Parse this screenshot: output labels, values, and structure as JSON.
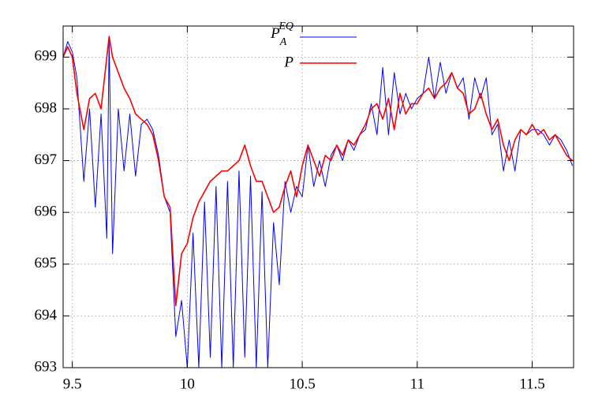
{
  "chart_data": {
    "type": "line",
    "x": [
      9.46,
      9.48,
      9.5,
      9.52,
      9.55,
      9.575,
      9.6,
      9.625,
      9.65,
      9.66,
      9.675,
      9.7,
      9.725,
      9.75,
      9.775,
      9.8,
      9.825,
      9.85,
      9.875,
      9.9,
      9.925,
      9.95,
      9.975,
      10,
      10.025,
      10.05,
      10.075,
      10.1,
      10.125,
      10.15,
      10.175,
      10.2,
      10.225,
      10.25,
      10.275,
      10.3,
      10.325,
      10.35,
      10.375,
      10.4,
      10.425,
      10.45,
      10.475,
      10.5,
      10.525,
      10.55,
      10.575,
      10.6,
      10.625,
      10.65,
      10.675,
      10.7,
      10.725,
      10.75,
      10.775,
      10.8,
      10.825,
      10.85,
      10.875,
      10.9,
      10.925,
      10.95,
      10.975,
      11,
      11.025,
      11.05,
      11.075,
      11.1,
      11.125,
      11.15,
      11.175,
      11.2,
      11.225,
      11.25,
      11.275,
      11.3,
      11.325,
      11.35,
      11.375,
      11.4,
      11.425,
      11.45,
      11.475,
      11.5,
      11.525,
      11.55,
      11.575,
      11.6,
      11.625,
      11.65,
      11.675
    ],
    "series": [
      {
        "name": "P",
        "name_sub": "A",
        "name_sup": "EQ",
        "color": "#0000ff",
        "values": [
          699.0,
          699.3,
          699.1,
          698.6,
          696.6,
          698.0,
          696.1,
          697.9,
          695.5,
          699.3,
          695.2,
          698.0,
          696.8,
          697.9,
          696.7,
          697.7,
          697.8,
          697.6,
          697.1,
          696.3,
          696.0,
          693.6,
          694.3,
          693.0,
          695.6,
          693.0,
          696.2,
          693.2,
          696.5,
          693.0,
          696.6,
          693.0,
          696.8,
          693.2,
          696.7,
          693.0,
          696.4,
          693.0,
          695.8,
          694.6,
          696.6,
          696.0,
          696.5,
          696.3,
          697.3,
          696.5,
          697.0,
          696.5,
          697.1,
          697.3,
          697.0,
          697.4,
          697.2,
          697.5,
          697.6,
          698.1,
          697.5,
          698.8,
          697.5,
          698.7,
          697.9,
          698.3,
          698.0,
          698.2,
          698.3,
          699.0,
          698.2,
          698.9,
          698.3,
          698.7,
          698.4,
          698.6,
          697.8,
          698.6,
          698.2,
          698.6,
          697.5,
          697.7,
          696.8,
          697.4,
          696.8,
          697.6,
          697.5,
          697.6,
          697.6,
          697.5,
          697.3,
          697.5,
          697.4,
          697.2,
          696.9
        ]
      },
      {
        "name": "P",
        "color": "#ff0000",
        "values": [
          699.0,
          699.2,
          699.0,
          698.3,
          697.6,
          698.2,
          698.3,
          698.0,
          699.0,
          699.4,
          699.0,
          698.7,
          698.4,
          698.2,
          697.9,
          697.8,
          697.7,
          697.5,
          697.0,
          696.3,
          696.1,
          694.2,
          695.2,
          695.4,
          695.9,
          696.2,
          696.4,
          696.6,
          696.7,
          696.8,
          696.8,
          696.9,
          697.0,
          697.3,
          696.9,
          696.6,
          696.6,
          696.3,
          696.0,
          696.1,
          696.5,
          696.8,
          696.3,
          696.9,
          697.3,
          697.0,
          696.7,
          697.1,
          697.0,
          697.3,
          697.1,
          697.4,
          697.3,
          697.5,
          697.7,
          698.0,
          698.1,
          697.8,
          698.2,
          697.6,
          698.3,
          697.9,
          698.1,
          698.1,
          698.3,
          698.4,
          698.2,
          698.4,
          698.5,
          698.7,
          698.4,
          698.3,
          697.9,
          698.0,
          698.3,
          697.9,
          697.6,
          697.8,
          697.3,
          697.0,
          697.4,
          697.6,
          697.5,
          697.7,
          697.5,
          697.6,
          697.4,
          697.5,
          697.3,
          697.1,
          697.0
        ]
      }
    ],
    "xlim": [
      9.46,
      11.68
    ],
    "ylim": [
      693,
      699.6
    ],
    "xticks": [
      9.5,
      10,
      10.5,
      11,
      11.5
    ],
    "yticks": [
      693,
      694,
      695,
      696,
      697,
      698,
      699
    ],
    "grid": true
  }
}
